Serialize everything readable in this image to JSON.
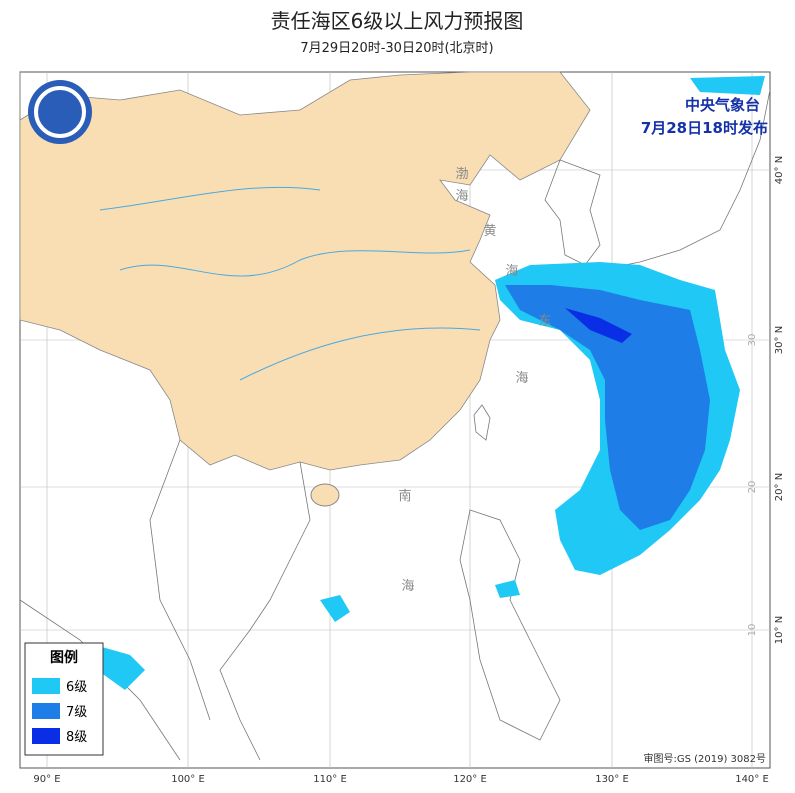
{
  "header": {
    "title": "责任海区6级以上风力预报图",
    "subtitle": "7月29日20时-30日20时(北京时)"
  },
  "issuer": {
    "name": "中央气象台",
    "time": "7月28日18时发布"
  },
  "legend": {
    "title": "图例",
    "items": [
      {
        "label": "6级",
        "color": "#1fc8f5"
      },
      {
        "label": "7级",
        "color": "#1e7de6"
      },
      {
        "label": "8级",
        "color": "#0a2ee6"
      }
    ]
  },
  "sea_labels": [
    "渤",
    "海",
    "黄",
    "海",
    "东",
    "海",
    "南",
    "海"
  ],
  "longitude_labels": [
    "90° E",
    "100° E",
    "110° E",
    "120° E",
    "130° E",
    "140° E"
  ],
  "latitude_labels": [
    "40° N",
    "30° N",
    "20° N",
    "10° N"
  ],
  "inner_latitude_labels": [
    "30",
    "20",
    "10"
  ],
  "approval": "审图号:GS (2019) 3082号"
}
